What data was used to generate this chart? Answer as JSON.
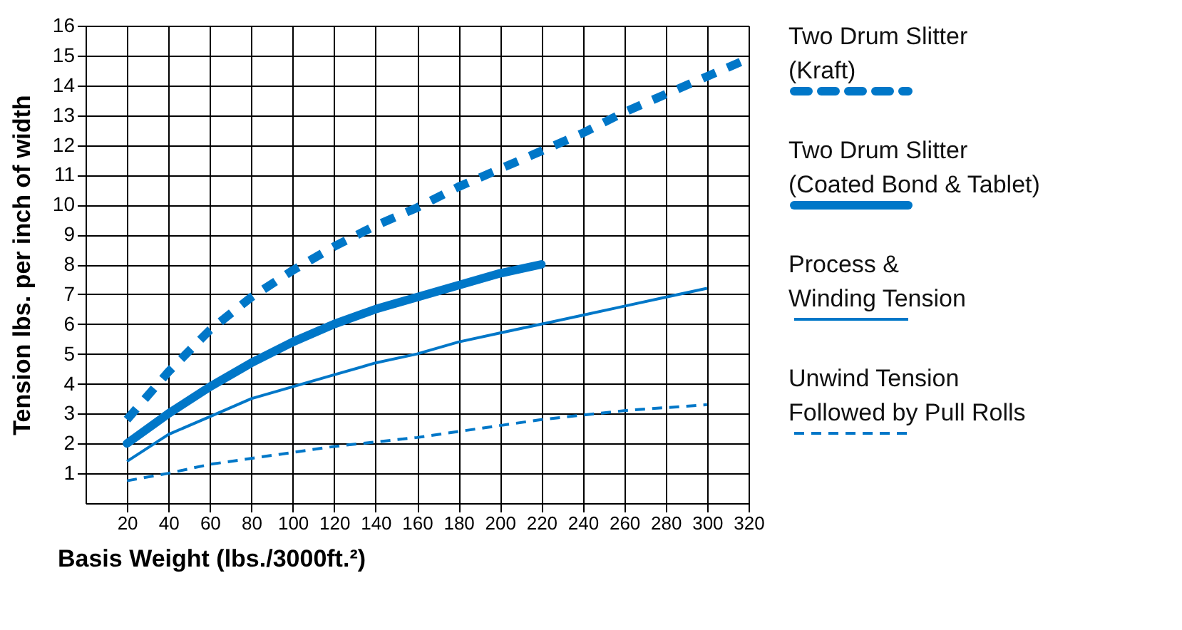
{
  "chart_data": {
    "type": "line",
    "xlabel": "Basis Weight (lbs./3000ft.²)",
    "ylabel": "Tension lbs. per inch of width",
    "xlim": [
      0,
      320
    ],
    "xticks": [
      20,
      40,
      60,
      80,
      100,
      120,
      140,
      160,
      180,
      200,
      220,
      240,
      260,
      280,
      300,
      320
    ],
    "ylim": [
      0,
      16
    ],
    "yticks": [
      1,
      2,
      3,
      4,
      5,
      6,
      7,
      8,
      9,
      10,
      11,
      12,
      13,
      14,
      15,
      16
    ],
    "grid": true,
    "legend": "right",
    "marker": "none",
    "series": [
      {
        "name": "Two Drum Slitter\n(Kraft)",
        "color": "#0077c8",
        "line_style": "dashed",
        "x": [
          20,
          40,
          60,
          80,
          100,
          120,
          140,
          160,
          180,
          200,
          220,
          240,
          260,
          280,
          300,
          320
        ],
        "values": [
          2.8,
          4.4,
          5.8,
          6.9,
          7.8,
          8.6,
          9.3,
          9.9,
          10.6,
          11.2,
          11.8,
          12.4,
          13.1,
          13.7,
          14.3,
          14.9
        ]
      },
      {
        "name": "Two Drum Slitter\n(Coated Bond & Tablet)",
        "color": "#0077c8",
        "line_style": "solid",
        "x": [
          20,
          40,
          60,
          80,
          100,
          120,
          140,
          160,
          180,
          200,
          220
        ],
        "values": [
          2.0,
          3.0,
          3.9,
          4.7,
          5.4,
          6.0,
          6.5,
          6.9,
          7.3,
          7.7,
          8.0
        ]
      },
      {
        "name": "Process &\nWinding Tension",
        "color": "#0077c8",
        "line_style": "solid",
        "x": [
          20,
          40,
          60,
          80,
          100,
          120,
          140,
          160,
          180,
          200,
          220,
          240,
          260,
          280,
          300
        ],
        "values": [
          1.4,
          2.3,
          2.9,
          3.5,
          3.9,
          4.3,
          4.7,
          5.0,
          5.4,
          5.7,
          6.0,
          6.3,
          6.6,
          6.9,
          7.2
        ]
      },
      {
        "name": "Unwind Tension\nFollowed by Pull Rolls",
        "color": "#0077c8",
        "line_style": "dashed",
        "x": [
          20,
          40,
          60,
          80,
          100,
          120,
          140,
          160,
          180,
          200,
          220,
          240,
          260,
          280,
          300
        ],
        "values": [
          0.75,
          1.0,
          1.3,
          1.5,
          1.7,
          1.9,
          2.05,
          2.2,
          2.4,
          2.6,
          2.8,
          2.95,
          3.1,
          3.2,
          3.3
        ]
      }
    ]
  }
}
